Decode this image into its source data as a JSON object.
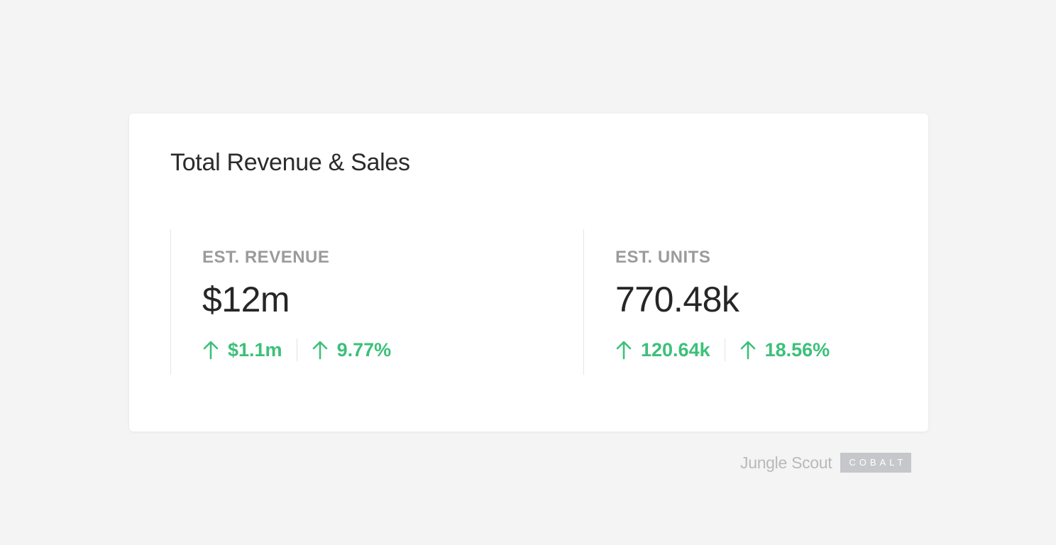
{
  "card": {
    "title": "Total Revenue & Sales",
    "metrics": [
      {
        "label": "EST. REVENUE",
        "value": "$12m",
        "changes": [
          {
            "icon": "arrow-up-icon",
            "direction": "up",
            "text": "$1.1m"
          },
          {
            "icon": "arrow-up-icon",
            "direction": "up",
            "text": "9.77%"
          }
        ]
      },
      {
        "label": "EST. UNITS",
        "value": "770.48k",
        "changes": [
          {
            "icon": "arrow-up-icon",
            "direction": "up",
            "text": "120.64k"
          },
          {
            "icon": "arrow-up-icon",
            "direction": "up",
            "text": "18.56%"
          }
        ]
      }
    ]
  },
  "brand": {
    "name": "Jungle Scout",
    "badge": "COBALT"
  },
  "colors": {
    "background": "#f4f4f4",
    "card": "#ffffff",
    "positive_change": "#3cc07a",
    "label": "#9b9b9b",
    "value": "#262626"
  }
}
